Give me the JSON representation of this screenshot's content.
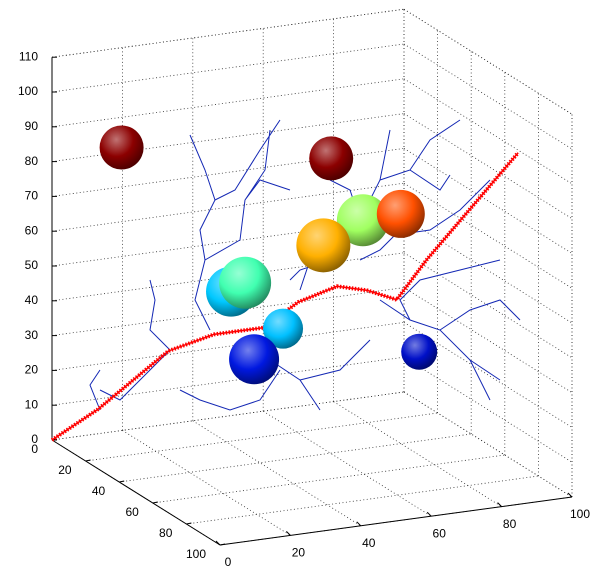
{
  "chart_data": {
    "type": "scatter3d",
    "xlim": [
      0,
      100
    ],
    "ylim": [
      0,
      100
    ],
    "zlim": [
      0,
      110
    ],
    "xticks": [
      0,
      20,
      40,
      60,
      80,
      100
    ],
    "yticks": [
      0,
      20,
      40,
      60,
      80,
      100
    ],
    "zticks": [
      0,
      10,
      20,
      30,
      40,
      50,
      60,
      70,
      80,
      90,
      100,
      110
    ],
    "grid": true,
    "points": {
      "x": [
        15,
        65,
        74,
        80,
        58,
        27,
        31,
        37,
        24,
        90
      ],
      "y": [
        10,
        30,
        30,
        40,
        40,
        50,
        50,
        60,
        70,
        30
      ],
      "z": [
        85,
        81,
        62,
        66,
        60,
        54,
        56,
        45,
        41,
        22
      ],
      "size": [
        22,
        22,
        26,
        24,
        27,
        25,
        26,
        20,
        25,
        18
      ],
      "colors": [
        "#8c0000",
        "#8c0000",
        "#a0ff60",
        "#ff5000",
        "#ffb000",
        "#00c8ff",
        "#40ffb0",
        "#00c0ff",
        "#0018e0",
        "#0010c8"
      ]
    },
    "path": {
      "color": "#ff0000",
      "x": [
        0,
        13,
        33,
        46,
        60,
        70,
        81,
        80,
        86,
        92,
        99,
        99
      ],
      "y": [
        0,
        0,
        0,
        0,
        0,
        0,
        0,
        20,
        25,
        30,
        40,
        70
      ],
      "z": [
        0,
        7,
        21,
        24,
        24,
        30,
        33,
        38,
        36,
        48,
        64,
        90
      ]
    }
  }
}
